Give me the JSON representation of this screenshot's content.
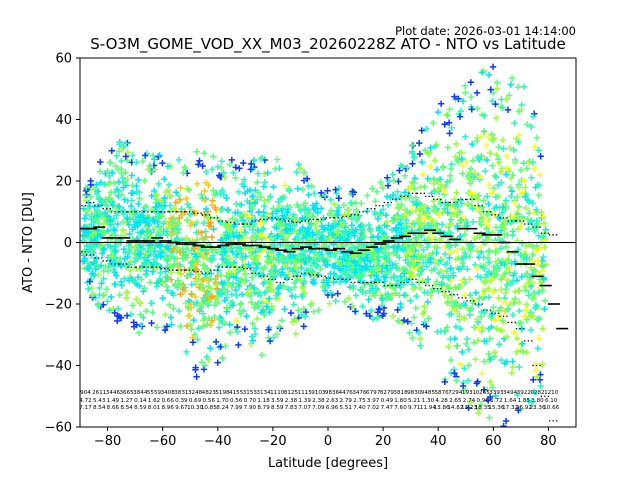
{
  "chart_data": {
    "type": "scatter",
    "plot_date": "Plot date: 2026-03-01 14:14:00",
    "title": "S-O3M_GOME_VOD_XX_M03_20260228Z ATO - NTO vs Latitude",
    "xlabel": "Latitude [degrees]",
    "ylabel": "ATO - NTO [DU]",
    "xlim": [
      -90,
      90
    ],
    "ylim": [
      -60,
      60
    ],
    "x_ticks": [
      -80,
      -60,
      -40,
      -20,
      0,
      20,
      40,
      60,
      80
    ],
    "x_tick_labels": [
      "−80",
      "−60",
      "−40",
      "−20",
      "0",
      "20",
      "40",
      "60",
      "80"
    ],
    "y_ticks": [
      -60,
      -40,
      -20,
      0,
      20,
      40,
      60
    ],
    "y_tick_labels": [
      "−60",
      "−40",
      "−20",
      "0",
      "20",
      "40",
      "60"
    ],
    "grid": false,
    "marker": "+",
    "colors": {
      "blue": "#0b3bff",
      "cyan": "#00e5f0",
      "aqua": "#2af7c8",
      "green": "#5cff7a",
      "lime": "#9cff3c",
      "yellow": "#f4ff1e",
      "gold": "#ffc81a",
      "orange": "#ffa412",
      "zero_line": "#000000"
    },
    "envelope": {
      "lat": [
        -89,
        -85,
        -80,
        -75,
        -70,
        -65,
        -60,
        -55,
        -52,
        -48,
        -45,
        -42,
        -38,
        -34,
        -30,
        -25,
        -20,
        -15,
        -10,
        -5,
        0,
        5,
        10,
        15,
        20,
        25,
        30,
        35,
        38,
        42,
        46,
        50,
        55,
        60,
        65,
        70,
        75,
        78,
        79
      ],
      "upper": [
        14,
        22,
        28,
        30,
        27,
        25,
        26,
        24,
        22,
        25,
        26,
        24,
        23,
        22,
        24,
        25,
        24,
        23,
        22,
        17,
        16,
        15,
        14,
        14,
        18,
        21,
        28,
        33,
        38,
        40,
        43,
        45,
        48,
        50,
        47,
        45,
        38,
        22,
        10
      ],
      "lower": [
        -12,
        -17,
        -22,
        -24,
        -25,
        -24,
        -25,
        -27,
        -31,
        -39,
        -40,
        -38,
        -34,
        -30,
        -30,
        -31,
        -28,
        -25,
        -24,
        -20,
        -18,
        -18,
        -20,
        -22,
        -24,
        -25,
        -26,
        -28,
        -33,
        -40,
        -46,
        -48,
        -50,
        -50,
        -52,
        -54,
        -50,
        -40,
        -20
      ]
    },
    "median": {
      "lat": [
        -89,
        -86,
        -83,
        -80,
        -77,
        -74,
        -71,
        -68,
        -65,
        -62,
        -59,
        -56,
        -53,
        -50,
        -47,
        -44,
        -41,
        -38,
        -35,
        -32,
        -29,
        -26,
        -23,
        -20,
        -17,
        -14,
        -11,
        -8,
        -5,
        -2,
        1,
        4,
        7,
        10,
        13,
        16,
        19,
        22,
        25,
        28,
        31,
        34,
        37,
        40,
        43,
        46,
        49,
        52,
        55,
        58,
        61,
        64,
        67,
        70,
        73,
        76,
        79,
        82,
        85
      ],
      "values": [
        4.5,
        4.5,
        5,
        1.5,
        1.5,
        1.5,
        0.5,
        0.5,
        0.5,
        1.5,
        0.5,
        0,
        -0.5,
        -0.5,
        -1,
        -1.5,
        -1.5,
        -1,
        -0.5,
        -0.5,
        -1,
        -1,
        -1.5,
        -2,
        -2.5,
        -3,
        -2,
        -1.5,
        -2,
        -2,
        -2.5,
        -2,
        -3,
        -3.5,
        -2.5,
        -1.5,
        -0.5,
        0.5,
        1.5,
        2,
        3,
        3,
        4,
        3,
        2,
        1,
        4.5,
        4.5,
        3,
        2.5,
        2.5,
        0,
        -3,
        -7,
        -7,
        -11,
        -14,
        -20,
        -28
      ]
    },
    "upper_dots": {
      "lat": [
        -89,
        -86,
        -83,
        -80,
        -77,
        -74,
        -71,
        -68,
        -65,
        -62,
        -59,
        -56,
        -53,
        -50,
        -47,
        -44,
        -41,
        -38,
        -35,
        -32,
        -29,
        -26,
        -23,
        -20,
        -17,
        -14,
        -11,
        -8,
        -5,
        -2,
        1,
        4,
        7,
        10,
        13,
        16,
        19,
        22,
        25,
        28,
        31,
        34,
        37,
        40,
        43,
        46,
        49,
        52,
        55,
        58,
        61,
        64,
        67,
        70,
        73,
        76,
        79,
        82
      ],
      "values": [
        12,
        13,
        12,
        11,
        10,
        10,
        10,
        10,
        10,
        10,
        10,
        10,
        10,
        10,
        9.5,
        9,
        8,
        7,
        6.5,
        6,
        6,
        7,
        7.5,
        8,
        7.5,
        7,
        6.5,
        7,
        7.5,
        7.5,
        8,
        8,
        8.5,
        9,
        10,
        11,
        12,
        13,
        14,
        15,
        16,
        16,
        15,
        14,
        13,
        13,
        14,
        14,
        12,
        10,
        9,
        8,
        7,
        7,
        6,
        5,
        3,
        2.5
      ]
    },
    "lower_dots": {
      "lat": [
        -89,
        -86,
        -83,
        -80,
        -77,
        -74,
        -71,
        -68,
        -65,
        -62,
        -59,
        -56,
        -53,
        -50,
        -47,
        -44,
        -41,
        -38,
        -35,
        -32,
        -29,
        -26,
        -23,
        -20,
        -17,
        -14,
        -11,
        -8,
        -5,
        -2,
        1,
        4,
        7,
        10,
        13,
        16,
        19,
        22,
        25,
        28,
        31,
        34,
        37,
        40,
        43,
        46,
        49,
        52,
        55,
        58,
        61,
        64,
        67,
        70,
        73,
        76,
        79,
        82
      ],
      "values": [
        -3,
        -4,
        -5,
        -6,
        -7,
        -7,
        -8,
        -8,
        -8,
        -8,
        -8.5,
        -9,
        -9,
        -9,
        -9.5,
        -10,
        -9,
        -8,
        -8,
        -8,
        -8.5,
        -10,
        -11,
        -12,
        -13,
        -12,
        -11,
        -10,
        -10.5,
        -11,
        -11.5,
        -12,
        -12,
        -13,
        -13,
        -13,
        -13,
        -14,
        -14,
        -13,
        -12,
        -13,
        -14,
        -15,
        -16,
        -17,
        -18,
        -19,
        -20,
        -22,
        -23,
        -24,
        -26,
        -28,
        -32,
        -40,
        -50,
        -58
      ]
    },
    "stats_rows": [
      [
        "904",
        "2611",
        "3446",
        "3665",
        "3844",
        "5559",
        "3408",
        "3831",
        "3248",
        "4823",
        "5198",
        "4155",
        "3153",
        "3134",
        "1110",
        "8125",
        "1115",
        "9103",
        "9836",
        "4476",
        "3476",
        "6797",
        "8279",
        "3818",
        "9830",
        "9485",
        "5876",
        "7294",
        "1931",
        "0265",
        "3393",
        "3494",
        "3922",
        "0282",
        "1210"
      ],
      [
        "4.72",
        "5.43",
        "1.49",
        "1.27",
        "0.14",
        "1.62",
        "0.66",
        "0.39",
        "0.69",
        "0.56",
        "1.70",
        "0.56",
        "0.70",
        "1.18",
        "3.59",
        "2.38",
        "1.39",
        "2.38",
        "2.63",
        "2.79",
        "2.75",
        "3.97",
        "0.49",
        "1.80",
        "5.21",
        "1.30",
        "4.28",
        "2.65",
        "2.74",
        "0.96",
        "5.72",
        "1.64",
        "1.85",
        "3.80",
        "6.10"
      ],
      [
        "7.17",
        "8.54",
        "8.66",
        "8.54",
        "8.59",
        "8.01",
        "8.96",
        "9.67",
        "10.30",
        "10.85",
        "8.24",
        "7.99",
        "7.90",
        "8.79",
        "8.59",
        "7.83",
        "7.07",
        "7.09",
        "6.96",
        "5.51",
        "7.40",
        "7.02",
        "7.47",
        "7.60",
        "9.71",
        "11.94",
        "13.86",
        "14.82",
        "13.23",
        "18.35",
        "15.36",
        "17.32",
        "26.92",
        "23.36",
        "10.66"
      ]
    ]
  }
}
